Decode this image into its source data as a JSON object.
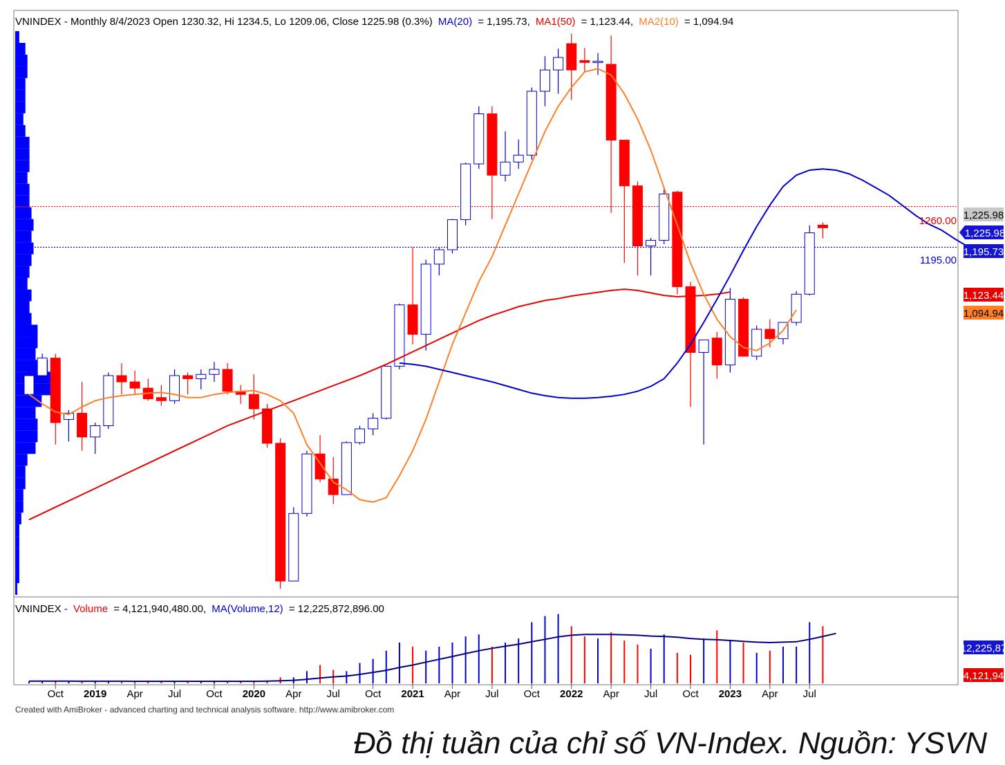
{
  "price_panel": {
    "title": "VNINDEX - Monthly 8/4/2023 Open 1230.32, Hi 1234.5, Lo 1209.06, Close 1225.98 (0.3%)",
    "ma20": "MA(20)",
    "ma20_value": "= 1,195.73,",
    "ma1": "MA1(50)",
    "ma1_value": "= 1,123.44,",
    "ma2": "MA2(10)",
    "ma2_value": "= 1,094.94",
    "hline_1260_label": "1260.00",
    "hline_1195_label": "1195.00",
    "tag_close": "1,225.98",
    "tag_close2": "1,225.98",
    "tag_ma20": "1,195.73",
    "tag_ma50": "1,123.44",
    "tag_ma10": "1,094.94"
  },
  "volume_panel": {
    "prefix": "VNINDEX -",
    "volume_label": "Volume",
    "volume_value": "= 4,121,940,480.00,",
    "ma_label": "MA(Volume,12)",
    "ma_value": "= 12,225,872,896.00",
    "tag_ma": "12,225,87",
    "tag_vol": "4,121,94"
  },
  "x_axis": {
    "ticks": [
      "Oct",
      "2019",
      "Apr",
      "Jul",
      "Oct",
      "2020",
      "Apr",
      "Jul",
      "Oct",
      "2021",
      "Apr",
      "Jul",
      "Oct",
      "2022",
      "Apr",
      "Jul",
      "Oct",
      "2023",
      "Apr",
      "Jul"
    ],
    "bold": [
      "2019",
      "2020",
      "2021",
      "2022",
      "2023"
    ]
  },
  "footer": "Created with AmiBroker - advanced charting and technical analysis software. http://www.amibroker.com",
  "caption": "Đồ thị tuần của chỉ số VN-Index. Nguồn: YSVN",
  "colors": {
    "up": "#ffffff",
    "down": "#ff0000",
    "ma20": "#0000cc",
    "ma50": "#e60000",
    "ma10": "#ff7f27",
    "profile": "#0000ff"
  },
  "chart_data": [
    {
      "type": "candlestick",
      "title": "VNINDEX - Monthly",
      "ohlc": [
        {
          "d": "2018-08",
          "o": 960,
          "h": 1010,
          "l": 950,
          "c": 990
        },
        {
          "d": "2018-09",
          "o": 990,
          "h": 1025,
          "l": 965,
          "c": 1018
        },
        {
          "d": "2018-10",
          "o": 1018,
          "h": 1025,
          "l": 880,
          "c": 915
        },
        {
          "d": "2018-11",
          "o": 920,
          "h": 935,
          "l": 885,
          "c": 930
        },
        {
          "d": "2018-12",
          "o": 930,
          "h": 980,
          "l": 870,
          "c": 892
        },
        {
          "d": "2019-01",
          "o": 892,
          "h": 915,
          "l": 865,
          "c": 910
        },
        {
          "d": "2019-02",
          "o": 910,
          "h": 995,
          "l": 905,
          "c": 990
        },
        {
          "d": "2019-03",
          "o": 990,
          "h": 1010,
          "l": 960,
          "c": 980
        },
        {
          "d": "2019-04",
          "o": 980,
          "h": 998,
          "l": 960,
          "c": 970
        },
        {
          "d": "2019-05",
          "o": 970,
          "h": 985,
          "l": 950,
          "c": 953
        },
        {
          "d": "2019-06",
          "o": 955,
          "h": 975,
          "l": 942,
          "c": 950
        },
        {
          "d": "2019-07",
          "o": 950,
          "h": 1000,
          "l": 945,
          "c": 990
        },
        {
          "d": "2019-08",
          "o": 990,
          "h": 995,
          "l": 960,
          "c": 985
        },
        {
          "d": "2019-09",
          "o": 985,
          "h": 1000,
          "l": 968,
          "c": 992
        },
        {
          "d": "2019-10",
          "o": 992,
          "h": 1012,
          "l": 980,
          "c": 1000
        },
        {
          "d": "2019-11",
          "o": 1000,
          "h": 1010,
          "l": 960,
          "c": 965
        },
        {
          "d": "2019-12",
          "o": 965,
          "h": 975,
          "l": 945,
          "c": 960
        },
        {
          "d": "2020-01",
          "o": 960,
          "h": 992,
          "l": 920,
          "c": 937
        },
        {
          "d": "2020-02",
          "o": 937,
          "h": 945,
          "l": 875,
          "c": 882
        },
        {
          "d": "2020-03",
          "o": 882,
          "h": 890,
          "l": 650,
          "c": 662
        },
        {
          "d": "2020-04",
          "o": 662,
          "h": 780,
          "l": 662,
          "c": 770
        },
        {
          "d": "2020-05",
          "o": 770,
          "h": 870,
          "l": 765,
          "c": 865
        },
        {
          "d": "2020-06",
          "o": 865,
          "h": 895,
          "l": 820,
          "c": 825
        },
        {
          "d": "2020-07",
          "o": 825,
          "h": 860,
          "l": 785,
          "c": 800
        },
        {
          "d": "2020-08",
          "o": 800,
          "h": 885,
          "l": 800,
          "c": 883
        },
        {
          "d": "2020-09",
          "o": 883,
          "h": 910,
          "l": 880,
          "c": 905
        },
        {
          "d": "2020-10",
          "o": 905,
          "h": 930,
          "l": 895,
          "c": 922
        },
        {
          "d": "2020-11",
          "o": 922,
          "h": 1005,
          "l": 920,
          "c": 1005
        },
        {
          "d": "2020-12",
          "o": 1005,
          "h": 1105,
          "l": 1000,
          "c": 1103
        },
        {
          "d": "2021-01",
          "o": 1103,
          "h": 1195,
          "l": 1040,
          "c": 1056
        },
        {
          "d": "2021-02",
          "o": 1056,
          "h": 1175,
          "l": 1030,
          "c": 1168
        },
        {
          "d": "2021-03",
          "o": 1168,
          "h": 1195,
          "l": 1150,
          "c": 1191
        },
        {
          "d": "2021-04",
          "o": 1191,
          "h": 1240,
          "l": 1185,
          "c": 1239
        },
        {
          "d": "2021-05",
          "o": 1239,
          "h": 1330,
          "l": 1230,
          "c": 1328
        },
        {
          "d": "2021-06",
          "o": 1328,
          "h": 1420,
          "l": 1320,
          "c": 1408
        },
        {
          "d": "2021-07",
          "o": 1408,
          "h": 1420,
          "l": 1240,
          "c": 1310
        },
        {
          "d": "2021-08",
          "o": 1310,
          "h": 1380,
          "l": 1300,
          "c": 1331
        },
        {
          "d": "2021-09",
          "o": 1331,
          "h": 1367,
          "l": 1320,
          "c": 1342
        },
        {
          "d": "2021-10",
          "o": 1342,
          "h": 1450,
          "l": 1335,
          "c": 1444
        },
        {
          "d": "2021-11",
          "o": 1444,
          "h": 1500,
          "l": 1420,
          "c": 1478
        },
        {
          "d": "2021-12",
          "o": 1478,
          "h": 1512,
          "l": 1440,
          "c": 1498
        },
        {
          "d": "2022-01",
          "o": 1520,
          "h": 1536,
          "l": 1430,
          "c": 1478
        },
        {
          "d": "2022-02",
          "o": 1493,
          "h": 1513,
          "l": 1475,
          "c": 1490
        },
        {
          "d": "2022-03",
          "o": 1490,
          "h": 1505,
          "l": 1470,
          "c": 1492
        },
        {
          "d": "2022-04",
          "o": 1487,
          "h": 1533,
          "l": 1250,
          "c": 1366
        },
        {
          "d": "2022-05",
          "o": 1366,
          "h": 1366,
          "l": 1170,
          "c": 1293
        },
        {
          "d": "2022-06",
          "o": 1293,
          "h": 1300,
          "l": 1150,
          "c": 1197
        },
        {
          "d": "2022-07",
          "o": 1197,
          "h": 1210,
          "l": 1150,
          "c": 1206
        },
        {
          "d": "2022-08",
          "o": 1206,
          "h": 1290,
          "l": 1200,
          "c": 1280
        },
        {
          "d": "2022-09",
          "o": 1283,
          "h": 1285,
          "l": 1120,
          "c": 1132
        },
        {
          "d": "2022-10",
          "o": 1132,
          "h": 1140,
          "l": 940,
          "c": 1027
        },
        {
          "d": "2022-11",
          "o": 1027,
          "h": 1040,
          "l": 880,
          "c": 1047
        },
        {
          "d": "2022-12",
          "o": 1050,
          "h": 1060,
          "l": 985,
          "c": 1007
        },
        {
          "d": "2023-01",
          "o": 1007,
          "h": 1130,
          "l": 995,
          "c": 1112
        },
        {
          "d": "2023-02",
          "o": 1112,
          "h": 1115,
          "l": 1020,
          "c": 1021
        },
        {
          "d": "2023-03",
          "o": 1021,
          "h": 1070,
          "l": 1015,
          "c": 1064
        },
        {
          "d": "2023-04",
          "o": 1064,
          "h": 1080,
          "l": 1035,
          "c": 1049
        },
        {
          "d": "2023-05",
          "o": 1049,
          "h": 1070,
          "l": 1040,
          "c": 1075
        },
        {
          "d": "2023-06",
          "o": 1075,
          "h": 1125,
          "l": 1070,
          "c": 1120
        },
        {
          "d": "2023-07",
          "o": 1120,
          "h": 1230,
          "l": 1118,
          "c": 1218
        },
        {
          "d": "2023-08",
          "o": 1230.32,
          "h": 1234.5,
          "l": 1209.06,
          "c": 1225.98
        }
      ],
      "ma20": [
        1010,
        1008,
        1005,
        1000,
        995,
        990,
        985,
        980,
        974,
        968,
        962,
        958,
        955,
        954,
        954,
        955,
        957,
        960,
        965,
        973,
        985,
        1010,
        1040,
        1075,
        1112,
        1150,
        1190,
        1228,
        1262,
        1292,
        1310,
        1318,
        1320,
        1318,
        1312,
        1302,
        1290,
        1278,
        1262,
        1246,
        1232,
        1222,
        1208,
        1195.73
      ],
      "ma20_start": "2020-12",
      "ma10": [
        960,
        945,
        932,
        928,
        940,
        950,
        955,
        958,
        960,
        962,
        963,
        960,
        955,
        955,
        960,
        963,
        965,
        966,
        960,
        950,
        930,
        880,
        850,
        820,
        808,
        792,
        788,
        795,
        830,
        870,
        920,
        980,
        1040,
        1090,
        1140,
        1180,
        1230,
        1280,
        1330,
        1380,
        1420,
        1450,
        1475,
        1480,
        1470,
        1440,
        1400,
        1350,
        1290,
        1230,
        1170,
        1120,
        1080,
        1052,
        1035,
        1030,
        1042,
        1062,
        1094.94
      ],
      "ma10_start": "2018-08",
      "ma50": [
        760,
        770,
        780,
        790,
        800,
        810,
        820,
        830,
        840,
        850,
        860,
        870,
        880,
        890,
        900,
        910,
        918,
        926,
        934,
        942,
        950,
        958,
        966,
        974,
        982,
        990,
        999,
        1008,
        1018,
        1028,
        1038,
        1048,
        1058,
        1068,
        1078,
        1086,
        1093,
        1100,
        1105,
        1110,
        1113,
        1117,
        1120,
        1123,
        1126,
        1128,
        1126,
        1122,
        1118,
        1116,
        1117,
        1118,
        1120,
        1123.44
      ],
      "ma50_start": "2018-08",
      "hlines": [
        1260,
        1195
      ],
      "ylim": [
        640,
        1540
      ]
    },
    {
      "type": "bar",
      "title": "Volume",
      "values_billion": [
        0.5,
        0.5,
        0.6,
        0.5,
        0.5,
        0.4,
        0.5,
        0.6,
        0.5,
        0.5,
        0.4,
        0.4,
        0.5,
        0.5,
        0.5,
        0.5,
        0.5,
        0.5,
        0.6,
        1.5,
        1.5,
        3.0,
        4.5,
        3.3,
        3.0,
        5.0,
        6.0,
        8.0,
        10.0,
        9.0,
        8.0,
        9.0,
        10.0,
        11.5,
        12.0,
        9.0,
        10.0,
        11.0,
        15.0,
        16.5,
        17.0,
        14.0,
        11.5,
        11.0,
        12.5,
        10.5,
        9.5,
        8.5,
        12.0,
        7.5,
        7.0,
        11.0,
        13.0,
        10.5,
        10.0,
        7.5,
        8.0,
        9.0,
        9.0,
        15.0,
        14.0,
        4.12
      ],
      "ma12_billion": [
        0.55,
        0.55,
        0.55,
        0.54,
        0.53,
        0.52,
        0.52,
        0.52,
        0.51,
        0.51,
        0.5,
        0.5,
        0.5,
        0.5,
        0.5,
        0.5,
        0.5,
        0.5,
        0.55,
        0.65,
        0.75,
        1.0,
        1.3,
        1.6,
        1.8,
        2.2,
        2.7,
        3.2,
        3.9,
        4.5,
        5.2,
        5.9,
        6.6,
        7.3,
        8.0,
        8.6,
        9.1,
        9.6,
        10.2,
        10.8,
        11.4,
        11.8,
        12.0,
        12.0,
        12.0,
        11.9,
        11.8,
        11.6,
        11.5,
        11.3,
        11.0,
        10.8,
        10.7,
        10.5,
        10.3,
        10.1,
        10.0,
        10.1,
        10.2,
        10.8,
        11.5,
        12.23
      ],
      "ylim": [
        0,
        20
      ]
    }
  ]
}
